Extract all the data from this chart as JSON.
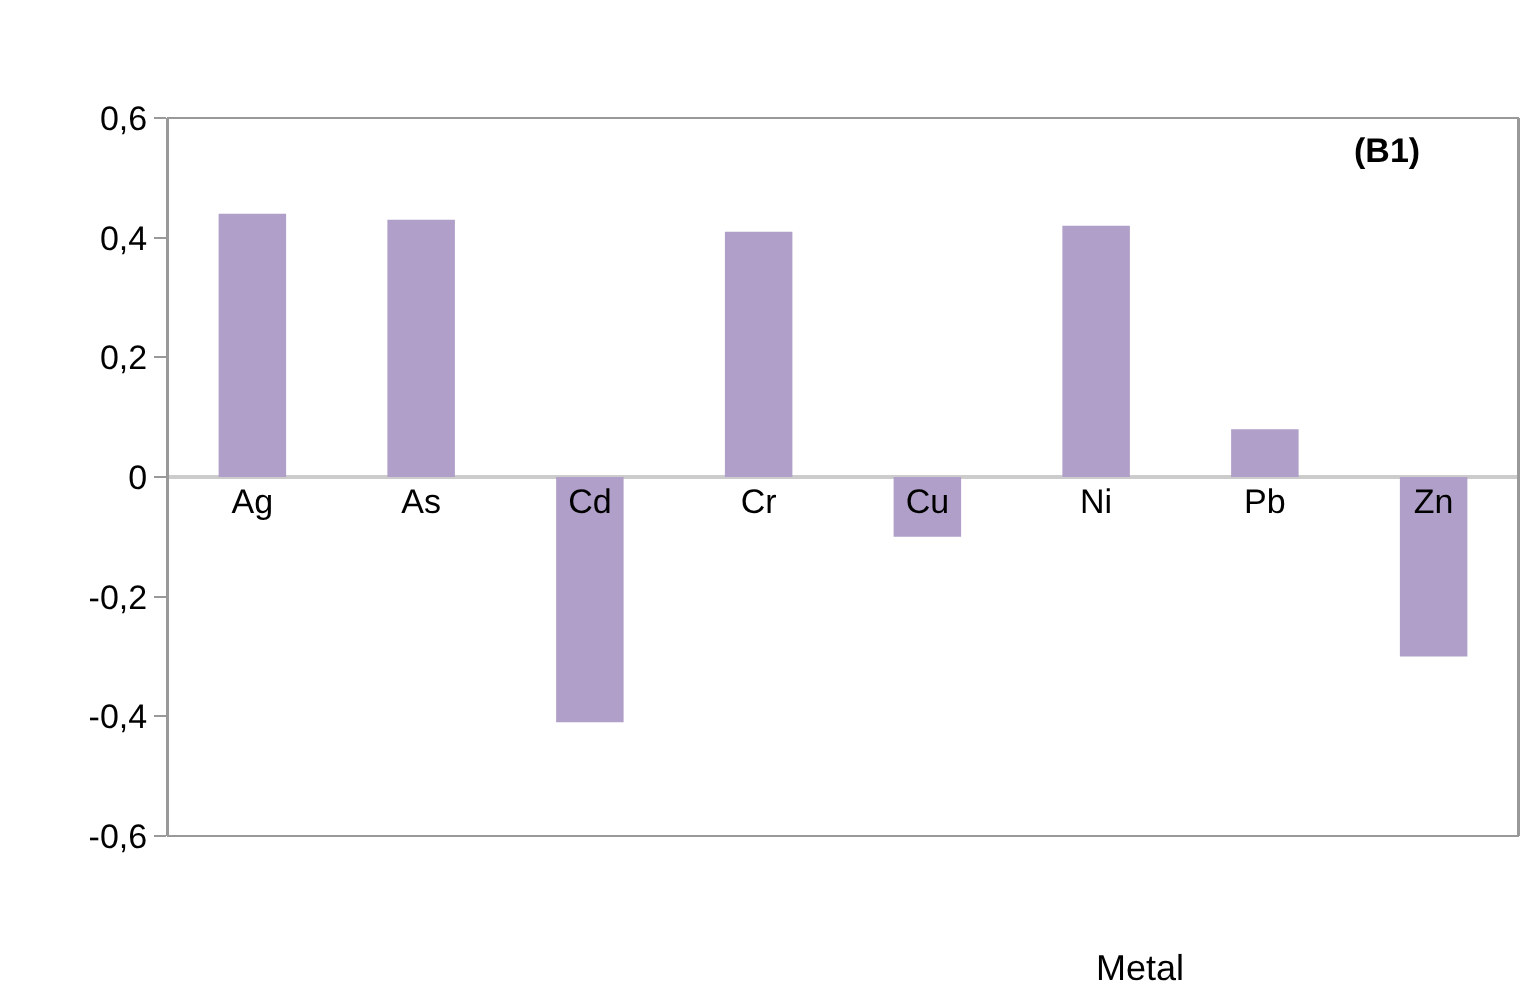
{
  "chart_data": {
    "type": "bar",
    "title": "(B1)",
    "xlabel": "Metal",
    "categories": [
      "Ag",
      "As",
      "Cd",
      "Cr",
      "Cu",
      "Ni",
      "Pb",
      "Zn"
    ],
    "values": [
      0.44,
      0.43,
      -0.41,
      0.41,
      -0.1,
      0.42,
      0.08,
      -0.3
    ],
    "color": "#b09fc8",
    "ylim": [
      -0.6,
      0.6
    ],
    "yticks": [
      {
        "value": -0.6,
        "label": "-0,6"
      },
      {
        "value": -0.4,
        "label": "-0,4"
      },
      {
        "value": -0.2,
        "label": "-0,2"
      },
      0,
      {
        "value": 0.2,
        "label": "0,2"
      },
      {
        "value": 0.4,
        "label": "0,4"
      },
      {
        "value": 0.6,
        "label": "0,6"
      }
    ],
    "orientation": "vertical"
  }
}
